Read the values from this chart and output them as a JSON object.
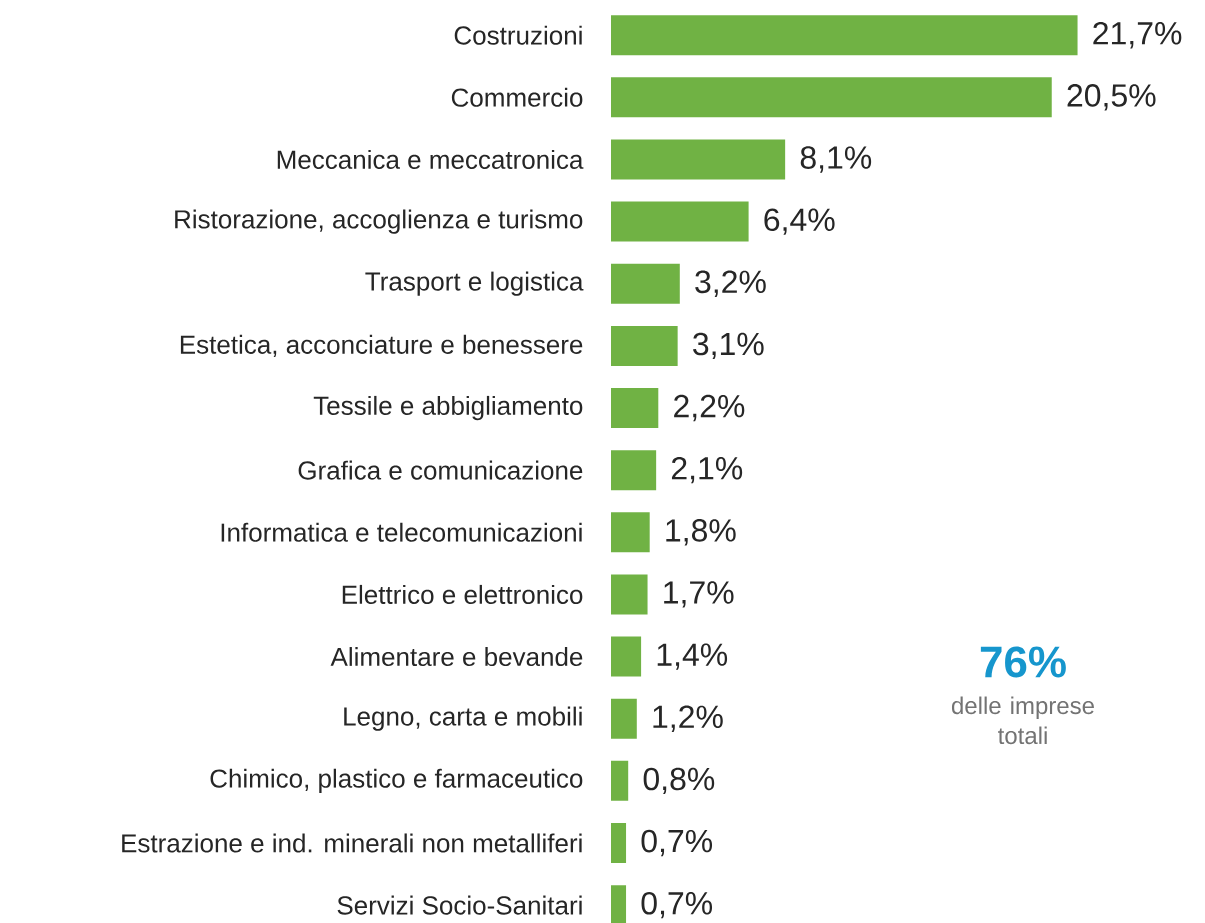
{
  "chart_data": {
    "type": "bar",
    "orientation": "horizontal",
    "categories": [
      "Costruzioni",
      "Commercio",
      "Meccanica e meccatronica",
      "Ristorazione, accoglienza e turismo",
      "Trasport e logistica",
      "Estetica, acconciature e benessere",
      "Tessile e abbigliamento",
      "Grafica e comunicazione",
      "Informatica e telecomunicazioni",
      "Elettrico e elettronico",
      "Alimentare e bevande",
      "Legno, carta e mobili",
      "Chimico, plastico e farmaceutico",
      "Estrazione e ind. minerali non metalliferi",
      "Servizi Socio-Sanitari"
    ],
    "values": [
      21.7,
      20.5,
      8.1,
      6.4,
      3.2,
      3.1,
      2.2,
      2.1,
      1.8,
      1.7,
      1.4,
      1.2,
      0.8,
      0.7,
      0.7
    ],
    "value_labels": [
      "21,7%",
      "20,5%",
      "8,1%",
      "6,4%",
      "3,2%",
      "3,1%",
      "2,2%",
      "2,1%",
      "1,8%",
      "1,7%",
      "1,4%",
      "1,2%",
      "0,8%",
      "0,7%",
      "0,7%"
    ],
    "color": "#70b244",
    "annotations": [
      "76%",
      "delle imprese totali"
    ]
  }
}
